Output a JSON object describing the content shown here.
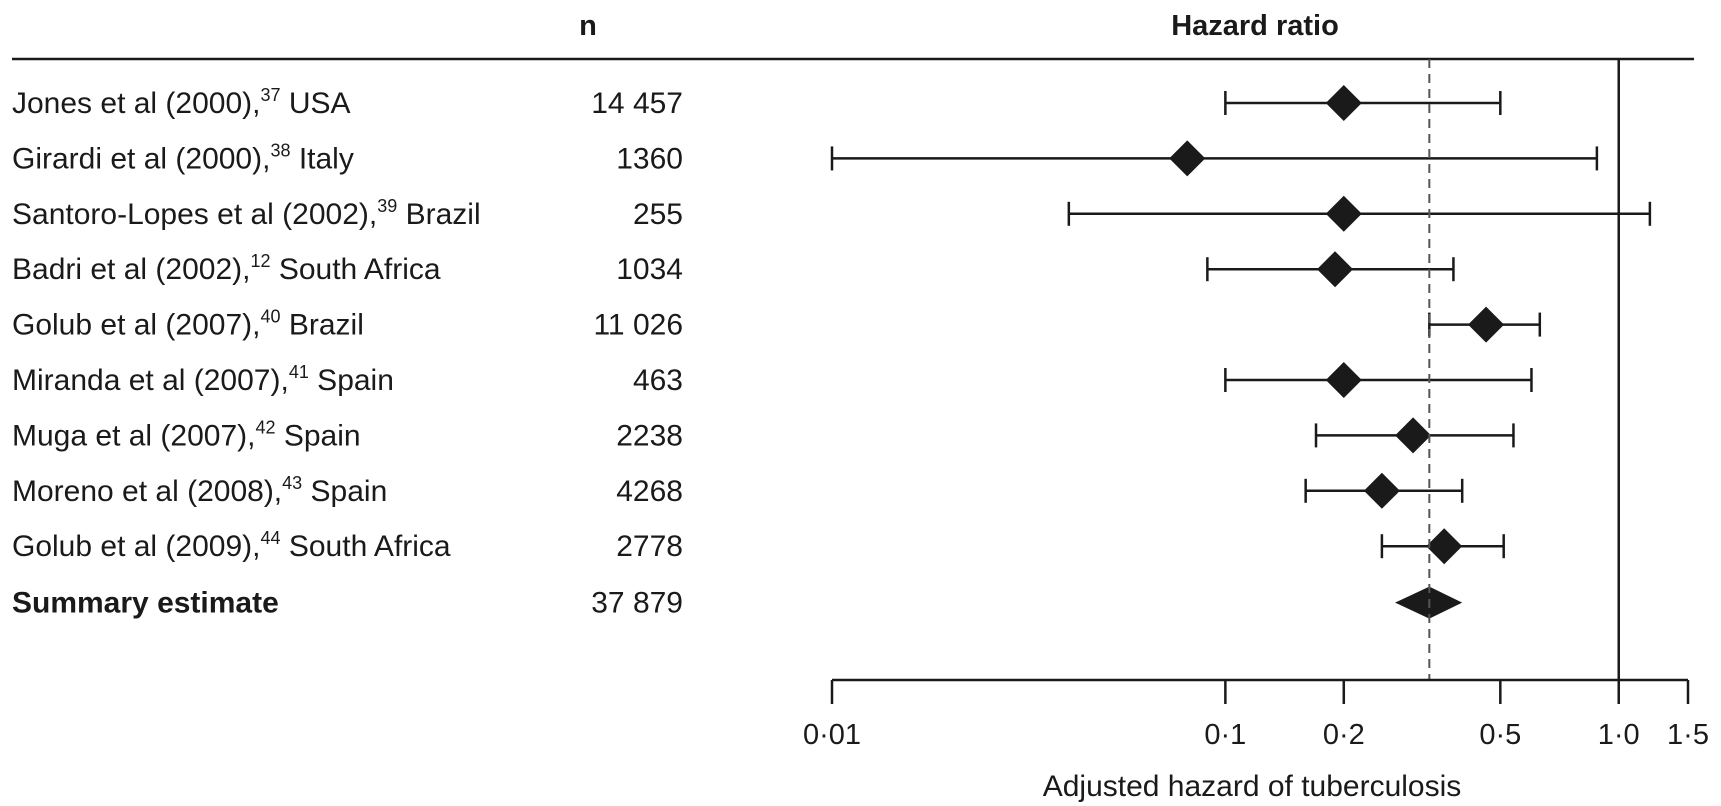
{
  "chart_data": {
    "type": "forest",
    "columns": {
      "n_header": "n",
      "hr_header": "Hazard ratio"
    },
    "xlabel": "Adjusted hazard of tuberculosis",
    "xscale": "log",
    "xlim": [
      0.01,
      1.5
    ],
    "ticks": [
      {
        "value": 0.01,
        "label": "0·01"
      },
      {
        "value": 0.1,
        "label": "0·1"
      },
      {
        "value": 0.2,
        "label": "0·2"
      },
      {
        "value": 0.5,
        "label": "0·5"
      },
      {
        "value": 1.0,
        "label": "1·0"
      },
      {
        "value": 1.5,
        "label": "1·5"
      }
    ],
    "reference_line": 1.0,
    "summary_line": 0.33,
    "studies": [
      {
        "author": "Jones et al (2000),",
        "ref": "37",
        "country": " USA",
        "n": "14 457",
        "hr": 0.2,
        "lo": 0.1,
        "hi": 0.5
      },
      {
        "author": "Girardi et al (2000),",
        "ref": "38",
        "country": " Italy",
        "n": "1360",
        "hr": 0.08,
        "lo": 0.01,
        "hi": 0.88
      },
      {
        "author": "Santoro-Lopes et al (2002),",
        "ref": "39",
        "country": " Brazil",
        "n": "255",
        "hr": 0.2,
        "lo": 0.04,
        "hi": 1.2
      },
      {
        "author": "Badri et al (2002),",
        "ref": "12",
        "country": " South Africa",
        "n": "1034",
        "hr": 0.19,
        "lo": 0.09,
        "hi": 0.38
      },
      {
        "author": "Golub et al (2007),",
        "ref": "40",
        "country": " Brazil",
        "n": "11 026",
        "hr": 0.46,
        "lo": 0.33,
        "hi": 0.63
      },
      {
        "author": "Miranda et al (2007),",
        "ref": "41",
        "country": " Spain",
        "n": "463",
        "hr": 0.2,
        "lo": 0.1,
        "hi": 0.6
      },
      {
        "author": "Muga et al (2007),",
        "ref": "42",
        "country": " Spain",
        "n": "2238",
        "hr": 0.3,
        "lo": 0.17,
        "hi": 0.54
      },
      {
        "author": "Moreno et al (2008),",
        "ref": "43",
        "country": " Spain",
        "n": "4268",
        "hr": 0.25,
        "lo": 0.16,
        "hi": 0.4
      },
      {
        "author": "Golub et al (2009),",
        "ref": "44",
        "country": " South Africa",
        "n": "2778",
        "hr": 0.36,
        "lo": 0.25,
        "hi": 0.51
      }
    ],
    "summary": {
      "label": "Summary estimate",
      "n": "37 879",
      "hr": 0.33,
      "lo": 0.27,
      "hi": 0.4
    }
  }
}
